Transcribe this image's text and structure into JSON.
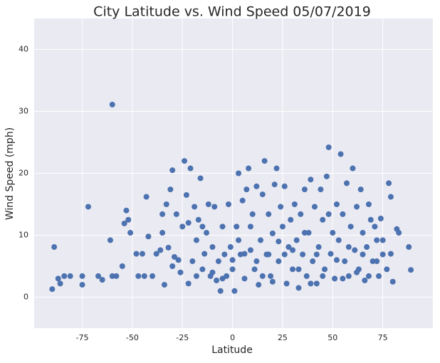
{
  "chart_data": {
    "type": "scatter",
    "title": "City Latitude vs. Wind Speed 05/07/2019",
    "x_label": "Latitude",
    "y_label": "Wind Speed (mph)",
    "color": "#4c72b0",
    "grid": true,
    "xlim": [
      -99,
      100
    ],
    "ylim": [
      -5,
      45
    ],
    "xticks": [
      -75,
      -50,
      -25,
      0,
      25,
      50,
      75
    ],
    "yticks": [
      0,
      10,
      20,
      30,
      40
    ],
    "x": [
      -90,
      -89,
      -87,
      -86,
      -84,
      -81,
      -75,
      -75,
      -72,
      -67,
      -65,
      -61,
      -60,
      -60,
      -58,
      -55,
      -54,
      -53,
      -52,
      -51,
      -48,
      -47,
      -45,
      -44,
      -43,
      -42,
      -40,
      -38,
      -36,
      -35,
      -34,
      -33,
      -32,
      -31,
      -30,
      -29,
      -28,
      -26,
      -25,
      -24,
      -23,
      -22,
      -21,
      -20,
      -19,
      -18,
      -17,
      -16,
      -15,
      -14,
      -13,
      -12,
      -11,
      -10,
      -9,
      -8,
      -7,
      -6,
      -5,
      -4,
      -3,
      -2,
      -1,
      0,
      1,
      2,
      3,
      4,
      5,
      6,
      7,
      8,
      9,
      10,
      11,
      12,
      13,
      14,
      15,
      16,
      17,
      18,
      19,
      20,
      21,
      22,
      23,
      24,
      25,
      26,
      27,
      28,
      29,
      30,
      31,
      32,
      33,
      34,
      35,
      36,
      37,
      38,
      39,
      40,
      41,
      42,
      43,
      44,
      45,
      46,
      47,
      48,
      49,
      50,
      51,
      52,
      53,
      54,
      55,
      56,
      57,
      58,
      59,
      60,
      61,
      62,
      63,
      64,
      65,
      66,
      67,
      68,
      69,
      70,
      71,
      72,
      73,
      74,
      75,
      77,
      78,
      79,
      80,
      82,
      83,
      88,
      89,
      -35,
      -30,
      -27,
      -22,
      -18,
      -15,
      -10,
      -5,
      0,
      3,
      6,
      9,
      12,
      15,
      18,
      20,
      23,
      26,
      30,
      33,
      36,
      39,
      42,
      45,
      48,
      52,
      55,
      58,
      62,
      65,
      68,
      72,
      75,
      79
    ],
    "values": [
      1.3,
      8.1,
      3,
      2.2,
      3.4,
      3.4,
      3.4,
      2,
      14.6,
      3.4,
      2.8,
      9.2,
      31.1,
      3.4,
      3.4,
      5,
      11.9,
      14,
      12.5,
      10.4,
      7,
      3.4,
      7,
      3.4,
      16.2,
      9.8,
      3.4,
      7,
      7.6,
      13.4,
      2,
      15,
      8,
      17.4,
      20.5,
      6.5,
      13.4,
      4,
      11.4,
      22,
      16.5,
      2.2,
      20.8,
      5.8,
      14.6,
      9.2,
      12.5,
      19.2,
      4.5,
      7,
      10.4,
      15,
      3.4,
      8.1,
      14.6,
      2.7,
      5.8,
      1,
      11.4,
      6.9,
      3.4,
      15,
      8.1,
      4.5,
      1,
      11.4,
      20,
      6.9,
      15.6,
      3,
      17.4,
      20.8,
      7.6,
      13.4,
      4.5,
      17.9,
      2,
      9.2,
      16.6,
      22,
      6.9,
      13.4,
      3.4,
      10.3,
      18.2,
      20.8,
      5.8,
      14.6,
      11.4,
      17.9,
      2.2,
      8.1,
      12.5,
      4.5,
      15,
      9.2,
      1.5,
      13.4,
      6.9,
      17.4,
      3.4,
      10.4,
      19,
      5.8,
      14.6,
      2.2,
      8.1,
      17.4,
      12.5,
      4.5,
      19.5,
      24.2,
      7,
      10.4,
      3,
      15,
      9.2,
      23.1,
      13.4,
      5.8,
      18.4,
      3.4,
      11.4,
      20.8,
      7.6,
      14.6,
      4.5,
      17.4,
      10.4,
      2.7,
      8.1,
      15,
      12.5,
      5.8,
      11.4,
      9.2,
      3.4,
      12.7,
      6.9,
      4.5,
      18.4,
      16.2,
      2.5,
      11,
      10.4,
      8.1,
      4.4,
      10.4,
      5,
      6,
      12,
      3.4,
      11.4,
      4,
      3,
      6,
      9.2,
      7,
      11.4,
      5.8,
      3.4,
      6.9,
      2.5,
      9,
      6.9,
      7.6,
      4.5,
      10.4,
      2.2,
      6.9,
      3.4,
      13.4,
      6,
      3,
      8.1,
      4,
      6.9,
      3.4,
      5.8,
      9.2,
      7
    ]
  }
}
